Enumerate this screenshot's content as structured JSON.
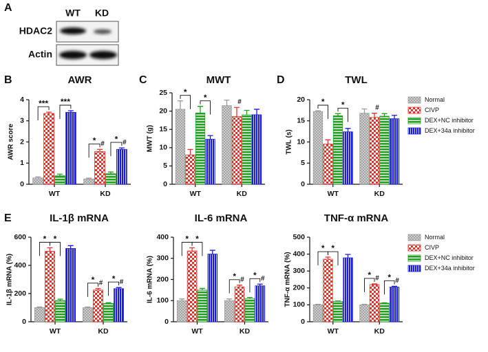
{
  "blot": {
    "panel": "A",
    "lanes": [
      "WT",
      "KD"
    ],
    "rows": [
      "HDAC2",
      "Actin"
    ]
  },
  "chart_data": [
    {
      "type": "bar",
      "panel": "B",
      "title": "AWR",
      "y_label": "AWR score",
      "categories": [
        "WT",
        "KD"
      ],
      "ylim": [
        0,
        4
      ],
      "yticks": [
        0,
        1,
        2,
        3,
        4
      ],
      "series": [
        {
          "color": "#9a9a9a",
          "pattern": "crosshatch",
          "values": [
            0.3,
            0.25
          ],
          "errors": [
            0.05,
            0.04
          ]
        },
        {
          "color": "#e8302a",
          "pattern": "checker",
          "values": [
            3.35,
            1.55
          ],
          "errors": [
            0.06,
            0.1
          ]
        },
        {
          "color": "#22a022",
          "pattern": "hstripe",
          "values": [
            0.4,
            0.5
          ],
          "errors": [
            0.08,
            0.08
          ]
        },
        {
          "color": "#1a1adb",
          "pattern": "vstripe",
          "values": [
            3.4,
            1.65
          ],
          "errors": [
            0.08,
            0.07
          ]
        }
      ],
      "brackets": [
        {
          "label": "***",
          "category": 0,
          "series": [
            0,
            1
          ]
        },
        {
          "label": "***",
          "category": 0,
          "series": [
            2,
            3
          ]
        },
        {
          "label": "*",
          "category": 1,
          "series": [
            0,
            1
          ]
        },
        {
          "label": "*",
          "category": 1,
          "series": [
            2,
            3
          ]
        }
      ],
      "markers": [
        {
          "label": "#",
          "category": 1,
          "series": 1
        },
        {
          "label": "#",
          "category": 1,
          "series": 3
        }
      ]
    },
    {
      "type": "bar",
      "panel": "C",
      "title": "MWT",
      "y_label": "MWT (g)",
      "categories": [
        "WT",
        "KD"
      ],
      "ylim": [
        0,
        25
      ],
      "yticks": [
        0,
        5,
        10,
        15,
        20,
        25
      ],
      "series": [
        {
          "color": "#9a9a9a",
          "pattern": "crosshatch",
          "values": [
            20.5,
            21.5
          ],
          "errors": [
            2.3,
            1.5
          ]
        },
        {
          "color": "#e8302a",
          "pattern": "checker",
          "values": [
            8,
            18.5
          ],
          "errors": [
            1.5,
            2.5
          ]
        },
        {
          "color": "#22a022",
          "pattern": "hstripe",
          "values": [
            19.5,
            19
          ],
          "errors": [
            1.8,
            1.2
          ]
        },
        {
          "color": "#1a1adb",
          "pattern": "vstripe",
          "values": [
            12.3,
            19
          ],
          "errors": [
            1,
            1.5
          ]
        }
      ],
      "brackets": [
        {
          "label": "*",
          "category": 0,
          "series": [
            0,
            1
          ]
        },
        {
          "label": "*",
          "category": 0,
          "series": [
            2,
            3
          ]
        }
      ],
      "markers": [
        {
          "label": "#",
          "category": 1,
          "series": 1
        }
      ]
    },
    {
      "type": "bar",
      "panel": "D",
      "title": "TWL",
      "y_label": "TWL (s)",
      "categories": [
        "WT",
        "KD"
      ],
      "ylim": [
        0,
        20
      ],
      "yticks": [
        0,
        5,
        10,
        15,
        20
      ],
      "legend": "right",
      "series": [
        {
          "name": "Normal",
          "color": "#9a9a9a",
          "pattern": "crosshatch",
          "values": [
            17.2,
            16.8
          ],
          "errors": [
            0.2,
            1
          ]
        },
        {
          "name": "CIVP",
          "color": "#e8302a",
          "pattern": "checker",
          "values": [
            9.5,
            15.8
          ],
          "errors": [
            1,
            1
          ]
        },
        {
          "name": "DEX+NC inhibitor",
          "color": "#22a022",
          "pattern": "hstripe",
          "values": [
            16.2,
            16.1
          ],
          "errors": [
            0.5,
            0.6
          ]
        },
        {
          "name": "DEX+34a inhibitor",
          "color": "#1a1adb",
          "pattern": "vstripe",
          "values": [
            12.4,
            15.5
          ],
          "errors": [
            0.8,
            0.8
          ]
        }
      ],
      "brackets": [
        {
          "label": "*",
          "category": 0,
          "series": [
            0,
            1
          ]
        },
        {
          "label": "*",
          "category": 0,
          "series": [
            2,
            3
          ]
        }
      ],
      "markers": [
        {
          "label": "#",
          "category": 1,
          "series": 1
        }
      ]
    },
    {
      "type": "bar",
      "panel": "E",
      "title": "IL-1β mRNA",
      "y_label": "IL-1β mRNA (%)",
      "categories": [
        "WT",
        "KD"
      ],
      "ylim": [
        0,
        600
      ],
      "yticks": [
        0,
        200,
        400,
        600
      ],
      "series": [
        {
          "color": "#9a9a9a",
          "pattern": "crosshatch",
          "values": [
            100,
            100
          ],
          "errors": [
            5,
            5
          ]
        },
        {
          "color": "#e8302a",
          "pattern": "checker",
          "values": [
            500,
            225
          ],
          "errors": [
            25,
            10
          ]
        },
        {
          "color": "#22a022",
          "pattern": "hstripe",
          "values": [
            150,
            130
          ],
          "errors": [
            10,
            5
          ]
        },
        {
          "color": "#1a1adb",
          "pattern": "vstripe",
          "values": [
            520,
            235
          ],
          "errors": [
            20,
            8
          ]
        }
      ],
      "brackets": [
        {
          "label": "*",
          "category": 0,
          "series": [
            0,
            1
          ]
        },
        {
          "label": "*",
          "category": 0,
          "series": [
            1,
            2
          ]
        },
        {
          "label": "*",
          "category": 1,
          "series": [
            0,
            1
          ]
        },
        {
          "label": "*",
          "category": 1,
          "series": [
            2,
            3
          ]
        }
      ],
      "markers": [
        {
          "label": "#",
          "category": 1,
          "series": 1
        },
        {
          "label": "#",
          "category": 1,
          "series": 3
        }
      ]
    },
    {
      "type": "bar",
      "title": "IL-6 mRNA",
      "y_label": "IL-6 mRNA (%)",
      "categories": [
        "WT",
        "KD"
      ],
      "ylim": [
        0,
        400
      ],
      "yticks": [
        0,
        100,
        200,
        300,
        400
      ],
      "series": [
        {
          "color": "#9a9a9a",
          "pattern": "crosshatch",
          "values": [
            100,
            100
          ],
          "errors": [
            8,
            8
          ]
        },
        {
          "color": "#e8302a",
          "pattern": "checker",
          "values": [
            335,
            165
          ],
          "errors": [
            15,
            8
          ]
        },
        {
          "color": "#22a022",
          "pattern": "hstripe",
          "values": [
            150,
            110
          ],
          "errors": [
            8,
            5
          ]
        },
        {
          "color": "#1a1adb",
          "pattern": "vstripe",
          "values": [
            320,
            170
          ],
          "errors": [
            18,
            8
          ]
        }
      ],
      "brackets": [
        {
          "label": "*",
          "category": 0,
          "series": [
            0,
            1
          ]
        },
        {
          "label": "*",
          "category": 0,
          "series": [
            1,
            2
          ]
        },
        {
          "label": "*",
          "category": 1,
          "series": [
            0,
            1
          ]
        },
        {
          "label": "*",
          "category": 1,
          "series": [
            2,
            3
          ]
        }
      ],
      "markers": [
        {
          "label": "#",
          "category": 1,
          "series": 1
        },
        {
          "label": "#",
          "category": 1,
          "series": 3
        }
      ]
    },
    {
      "type": "bar",
      "title": "TNF-α mRNA",
      "y_label": "TNF-α mRNA (%)",
      "categories": [
        "WT",
        "KD"
      ],
      "ylim": [
        0,
        500
      ],
      "yticks": [
        0,
        100,
        200,
        300,
        400,
        500
      ],
      "legend": "right",
      "series": [
        {
          "name": "Normal",
          "color": "#9a9a9a",
          "pattern": "crosshatch",
          "values": [
            100,
            100
          ],
          "errors": [
            3,
            3
          ]
        },
        {
          "name": "CIVP",
          "color": "#e8302a",
          "pattern": "checker",
          "values": [
            370,
            220
          ],
          "errors": [
            12,
            4
          ]
        },
        {
          "name": "DEX+NC inhibitor",
          "color": "#22a022",
          "pattern": "hstripe",
          "values": [
            120,
            110
          ],
          "errors": [
            3,
            2
          ]
        },
        {
          "name": "DEX+34a inhibitor",
          "color": "#1a1adb",
          "pattern": "vstripe",
          "values": [
            378,
            205
          ],
          "errors": [
            20,
            5
          ]
        }
      ],
      "brackets": [
        {
          "label": "*",
          "category": 0,
          "series": [
            0,
            1
          ]
        },
        {
          "label": "*",
          "category": 0,
          "series": [
            1,
            2
          ]
        },
        {
          "label": "*",
          "category": 1,
          "series": [
            0,
            1
          ]
        },
        {
          "label": "*",
          "category": 1,
          "series": [
            2,
            3
          ]
        }
      ],
      "markers": [
        {
          "label": "#",
          "category": 1,
          "series": 1
        },
        {
          "label": "#",
          "category": 1,
          "series": 3
        }
      ]
    }
  ]
}
